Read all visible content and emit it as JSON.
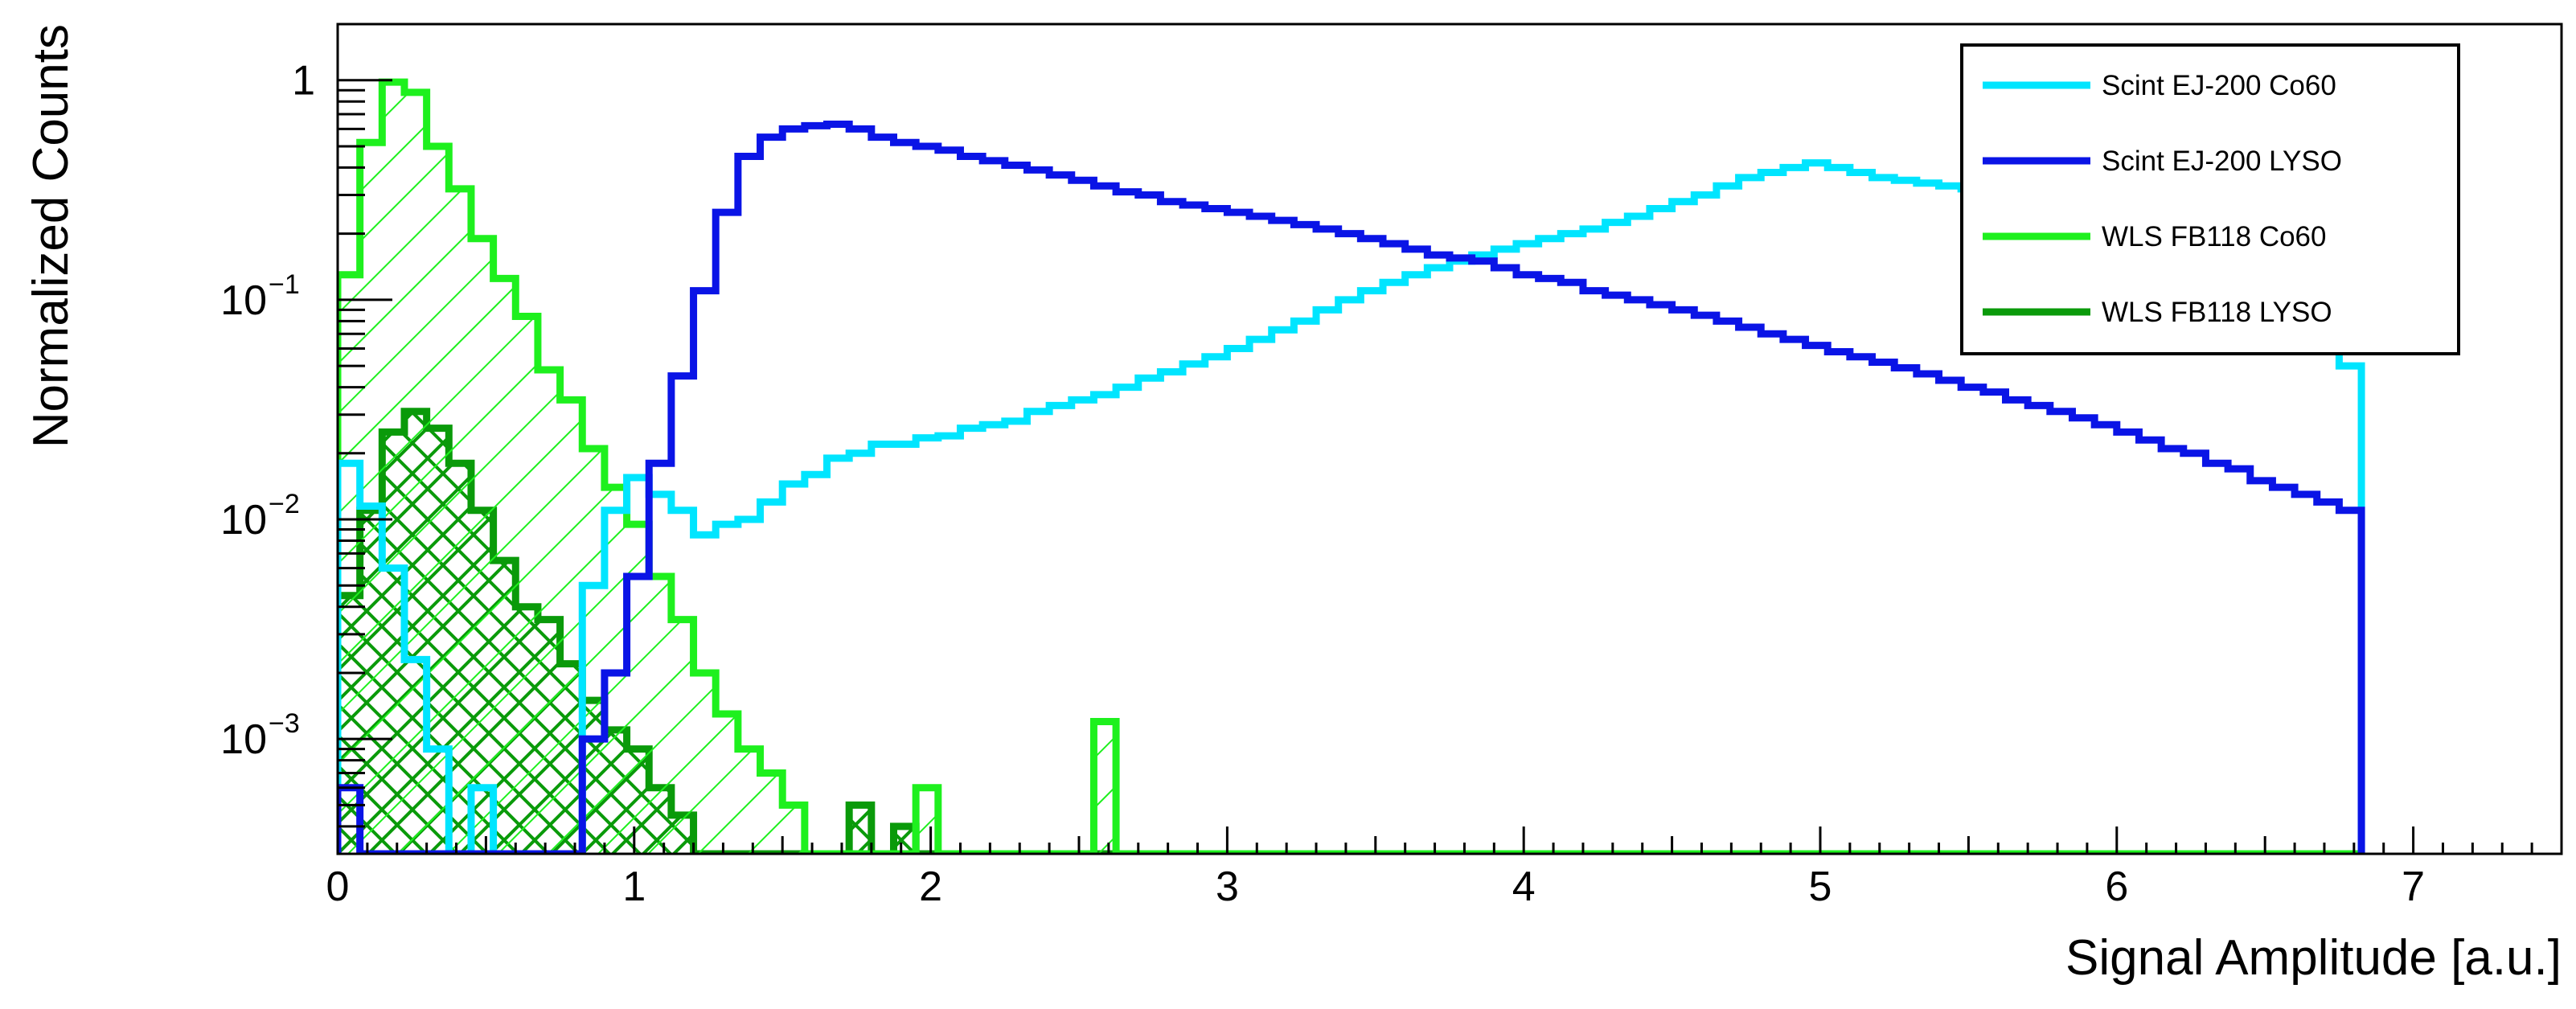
{
  "chart_data": {
    "type": "histogram",
    "title": "",
    "xlabel": "Signal Amplitude [a.u.]",
    "ylabel": "Normalized Counts",
    "xlim": [
      0,
      7.5
    ],
    "ylim": [
      0.0003,
      1.8
    ],
    "yscale": "log",
    "x_ticks": [
      0,
      1,
      2,
      3,
      4,
      5,
      6,
      7
    ],
    "y_ticks": [
      {
        "value": 1,
        "label": "1"
      },
      {
        "value": 0.1,
        "label": "10",
        "exponent": "−1"
      },
      {
        "value": 0.01,
        "label": "10",
        "exponent": "−2"
      },
      {
        "value": 0.001,
        "label": "10",
        "exponent": "−3"
      }
    ],
    "legend_position": "top-right",
    "bin_width": 0.075,
    "series": [
      {
        "name": "Scint EJ-200 Co60",
        "color": "#00e5ff",
        "fill": "none",
        "values": [
          0.018,
          0.0115,
          0.006,
          0.0023,
          0.0009,
          0.0003,
          0.0006,
          0.0003,
          0.0003,
          0.0003,
          0.0003,
          0.005,
          0.011,
          0.0155,
          0.013,
          0.011,
          0.0085,
          0.0095,
          0.01,
          0.012,
          0.0145,
          0.016,
          0.019,
          0.02,
          0.022,
          0.022,
          0.0235,
          0.024,
          0.026,
          0.027,
          0.028,
          0.031,
          0.033,
          0.035,
          0.037,
          0.04,
          0.044,
          0.047,
          0.051,
          0.055,
          0.06,
          0.066,
          0.073,
          0.08,
          0.09,
          0.1,
          0.11,
          0.12,
          0.13,
          0.14,
          0.15,
          0.16,
          0.17,
          0.18,
          0.19,
          0.2,
          0.21,
          0.225,
          0.24,
          0.26,
          0.28,
          0.3,
          0.33,
          0.36,
          0.38,
          0.4,
          0.42,
          0.4,
          0.38,
          0.36,
          0.35,
          0.34,
          0.33,
          0.32,
          0.31,
          0.3,
          0.285,
          0.27,
          0.25,
          0.23,
          0.21,
          0.19,
          0.17,
          0.15,
          0.13,
          0.11,
          0.095,
          0.08,
          0.07,
          0.06,
          0.05
        ]
      },
      {
        "name": "Scint EJ-200 LYSO",
        "color": "#0a14e6",
        "fill": "none",
        "values": [
          0.0006,
          0.0003,
          0.0003,
          0.0003,
          0.0003,
          0.0003,
          0.0003,
          0.0003,
          0.0003,
          0.0003,
          0.0003,
          0.001,
          0.002,
          0.0055,
          0.018,
          0.045,
          0.11,
          0.25,
          0.45,
          0.55,
          0.6,
          0.62,
          0.63,
          0.6,
          0.55,
          0.52,
          0.5,
          0.48,
          0.45,
          0.43,
          0.41,
          0.39,
          0.37,
          0.35,
          0.33,
          0.31,
          0.3,
          0.28,
          0.27,
          0.26,
          0.25,
          0.24,
          0.23,
          0.22,
          0.21,
          0.2,
          0.19,
          0.18,
          0.17,
          0.16,
          0.155,
          0.15,
          0.14,
          0.13,
          0.125,
          0.12,
          0.11,
          0.105,
          0.1,
          0.095,
          0.09,
          0.085,
          0.08,
          0.075,
          0.07,
          0.066,
          0.062,
          0.058,
          0.055,
          0.052,
          0.049,
          0.046,
          0.043,
          0.04,
          0.038,
          0.035,
          0.033,
          0.031,
          0.029,
          0.027,
          0.025,
          0.023,
          0.021,
          0.02,
          0.018,
          0.017,
          0.015,
          0.014,
          0.013,
          0.012,
          0.011
        ]
      },
      {
        "name": "WLS FB118 Co60",
        "color": "#1ef01e",
        "fill": "hatch-diagonal",
        "values": [
          0.13,
          0.52,
          0.98,
          0.88,
          0.5,
          0.32,
          0.19,
          0.125,
          0.084,
          0.048,
          0.035,
          0.021,
          0.014,
          0.0095,
          0.0055,
          0.0035,
          0.002,
          0.0013,
          0.0009,
          0.0007,
          0.0005,
          0.0003,
          0.0003,
          0.0003,
          0.0003,
          0.0003,
          0.0006,
          0.0003,
          0.0003,
          0.0003,
          0.0003,
          0.0003,
          0.0003,
          0.0003,
          0.0012,
          0.0003,
          0.0003,
          0.0003,
          0.0003,
          0.0003,
          0.0003,
          0.0003,
          0.0003,
          0.0003,
          0.0003,
          0.0003,
          0.0003,
          0.0003,
          0.0003,
          0.0003,
          0.0003,
          0.0003,
          0.0003,
          0.0003,
          0.0003,
          0.0003,
          0.0003,
          0.0003,
          0.0003,
          0.0003,
          0.0003,
          0.0003,
          0.0003,
          0.0003,
          0.0003,
          0.0003,
          0.0003,
          0.0003,
          0.0003,
          0.0003,
          0.0003,
          0.0003,
          0.0003,
          0.0003,
          0.0003,
          0.0003,
          0.0003,
          0.0003,
          0.0003,
          0.0003,
          0.0003,
          0.0003,
          0.0003,
          0.0003,
          0.0003,
          0.0003,
          0.0003,
          0.0003,
          0.0003,
          0.0003,
          0.0003
        ]
      },
      {
        "name": "WLS FB118 LYSO",
        "color": "#0a9a0a",
        "fill": "hatch-cross",
        "values": [
          0.0045,
          0.011,
          0.025,
          0.031,
          0.026,
          0.018,
          0.011,
          0.0065,
          0.004,
          0.0035,
          0.0022,
          0.0015,
          0.0011,
          0.0009,
          0.0006,
          0.00045,
          0.0003,
          0.0003,
          0.0003,
          0.0003,
          0.0003,
          0.0003,
          0.0003,
          0.0005,
          0.0003,
          0.0004,
          0.0003,
          0.0003,
          0.0003,
          0.0003,
          0.0003,
          0.0003,
          0.0003,
          0.0003,
          0.0003,
          0.0003,
          0.0003,
          0.0003,
          0.0003,
          0.0003,
          0.0003,
          0.0003,
          0.0003,
          0.0003,
          0.0003,
          0.0003,
          0.0003,
          0.0003,
          0.0003,
          0.0003,
          0.0003,
          0.0003,
          0.0003,
          0.0003,
          0.0003,
          0.0003,
          0.0003,
          0.0003,
          0.0003,
          0.0003,
          0.0003,
          0.0003,
          0.0003,
          0.0003,
          0.0003,
          0.0003,
          0.0003,
          0.0003,
          0.0003,
          0.0003,
          0.0003,
          0.0003,
          0.0003,
          0.0003,
          0.0003,
          0.0003,
          0.0003,
          0.0003,
          0.0003,
          0.0003,
          0.0003,
          0.0003,
          0.0003,
          0.0003,
          0.0003,
          0.0003,
          0.0003,
          0.0003,
          0.0003,
          0.0003
        ]
      }
    ]
  }
}
